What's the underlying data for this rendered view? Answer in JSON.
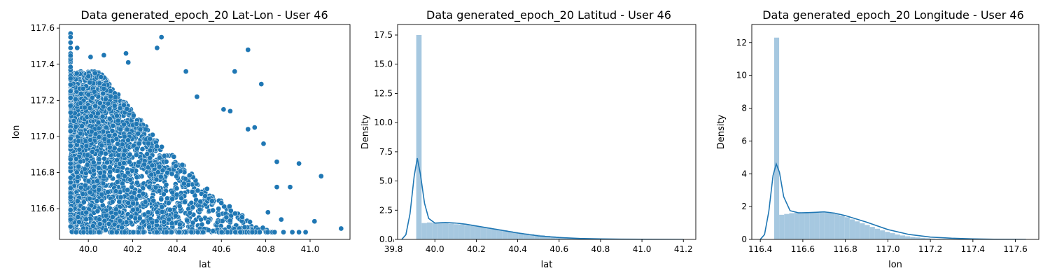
{
  "chart_data": [
    {
      "type": "scatter",
      "title": "Data generated_epoch_20 Lat-Lon - User 46",
      "xlabel": "lat",
      "ylabel": "lon",
      "xlim": [
        39.87,
        41.18
      ],
      "ylim": [
        116.43,
        117.62
      ],
      "xticks": [
        "40.0",
        "40.2",
        "40.4",
        "40.6",
        "40.8",
        "41.0"
      ],
      "yticks": [
        "116.6",
        "116.8",
        "117.0",
        "117.2",
        "117.4",
        "117.6"
      ],
      "color": "#1f77b4",
      "points": [
        [
          39.92,
          117.57
        ],
        [
          39.92,
          117.55
        ],
        [
          39.92,
          117.52
        ],
        [
          39.92,
          117.49
        ],
        [
          39.95,
          117.49
        ],
        [
          40.07,
          117.45
        ],
        [
          40.17,
          117.46
        ],
        [
          40.01,
          117.44
        ],
        [
          40.18,
          117.41
        ],
        [
          40.33,
          117.55
        ],
        [
          40.31,
          117.49
        ],
        [
          40.72,
          117.48
        ],
        [
          40.66,
          117.36
        ],
        [
          40.78,
          117.29
        ],
        [
          40.44,
          117.36
        ],
        [
          40.49,
          117.22
        ],
        [
          40.61,
          117.15
        ],
        [
          40.64,
          117.14
        ],
        [
          40.72,
          117.04
        ],
        [
          40.75,
          117.05
        ],
        [
          40.79,
          116.96
        ],
        [
          40.85,
          116.86
        ],
        [
          40.95,
          116.85
        ],
        [
          41.05,
          116.78
        ],
        [
          40.91,
          116.72
        ],
        [
          40.85,
          116.72
        ],
        [
          40.81,
          116.58
        ],
        [
          40.87,
          116.54
        ],
        [
          41.02,
          116.53
        ],
        [
          41.14,
          116.49
        ],
        [
          40.95,
          116.47
        ],
        [
          40.98,
          116.47
        ],
        [
          40.88,
          116.47
        ],
        [
          40.92,
          116.47
        ],
        [
          40.84,
          116.47
        ]
      ],
      "dense_region": {
        "lat_min": 39.92,
        "lat_max_at_top": 40.05,
        "lon_top": 117.36,
        "lat_max_at_bottom": 40.84,
        "lon_bottom": 116.47
      }
    },
    {
      "type": "histogram",
      "title": "Data generated_epoch_20 Latitud - User 46",
      "xlabel": "lat",
      "ylabel": "Density",
      "xlim": [
        39.82,
        41.26
      ],
      "ylim": [
        0,
        18.4
      ],
      "xticks": [
        "39.8",
        "40.0",
        "40.2",
        "40.4",
        "40.6",
        "40.8",
        "41.0",
        "41.2"
      ],
      "yticks": [
        "0.0",
        "2.5",
        "5.0",
        "7.5",
        "10.0",
        "12.5",
        "15.0",
        "17.5"
      ],
      "bar_color": "#a6c8e0",
      "line_color": "#1f77b4",
      "bins": {
        "start": 39.91,
        "width": 0.0259,
        "values": [
          17.5,
          1.4,
          1.45,
          1.4,
          1.4,
          1.38,
          1.35,
          1.3,
          1.28,
          1.22,
          1.17,
          1.12,
          1.06,
          1.0,
          0.92,
          0.85,
          0.78,
          0.7,
          0.62,
          0.55,
          0.5,
          0.45,
          0.4,
          0.35,
          0.3,
          0.26,
          0.22,
          0.18,
          0.15,
          0.12,
          0.1,
          0.08,
          0.06,
          0.05,
          0.04,
          0.03,
          0.025,
          0.02,
          0.015,
          0.012,
          0.01,
          0.008,
          0.006,
          0.005,
          0.004,
          0.003,
          0.003,
          0.002,
          0.002,
          0.001
        ]
      },
      "kde": {
        "x": [
          39.84,
          39.86,
          39.88,
          39.9,
          39.915,
          39.93,
          39.95,
          39.97,
          40.0,
          40.05,
          40.1,
          40.15,
          40.2,
          40.3,
          40.4,
          40.5,
          40.6,
          40.7,
          40.8,
          40.9,
          41.0,
          41.1,
          41.2
        ],
        "y": [
          0.0,
          0.4,
          2.2,
          5.4,
          6.95,
          5.6,
          3.1,
          1.8,
          1.4,
          1.45,
          1.4,
          1.3,
          1.15,
          0.85,
          0.55,
          0.3,
          0.16,
          0.08,
          0.04,
          0.02,
          0.01,
          0.005,
          0.0
        ]
      }
    },
    {
      "type": "histogram",
      "title": "Data generated_epoch_20 Longitude - User 46",
      "xlabel": "lon",
      "ylabel": "Density",
      "xlim": [
        116.36,
        117.71
      ],
      "ylim": [
        0,
        13.1
      ],
      "xticks": [
        "116.4",
        "116.6",
        "116.8",
        "117.0",
        "117.2",
        "117.4",
        "117.6"
      ],
      "yticks": [
        "0",
        "2",
        "4",
        "6",
        "8",
        "10",
        "12"
      ],
      "bar_color": "#a6c8e0",
      "line_color": "#1f77b4",
      "bins": {
        "start": 116.465,
        "width": 0.0237,
        "values": [
          12.3,
          1.5,
          1.55,
          1.6,
          1.62,
          1.64,
          1.65,
          1.66,
          1.68,
          1.7,
          1.68,
          1.62,
          1.55,
          1.45,
          1.35,
          1.22,
          1.1,
          0.98,
          0.88,
          0.76,
          0.65,
          0.55,
          0.46,
          0.38,
          0.3,
          0.24,
          0.19,
          0.15,
          0.12,
          0.09,
          0.07,
          0.05,
          0.04,
          0.03,
          0.025,
          0.02,
          0.015,
          0.01,
          0.008,
          0.006,
          0.005,
          0.004,
          0.003,
          0.002,
          0.002,
          0.001,
          0.001,
          0.001,
          0.001,
          0.0
        ]
      },
      "kde": {
        "x": [
          116.4,
          116.42,
          116.44,
          116.46,
          116.475,
          116.49,
          116.51,
          116.54,
          116.58,
          116.62,
          116.66,
          116.7,
          116.75,
          116.8,
          116.9,
          117.0,
          117.1,
          117.2,
          117.3,
          117.4,
          117.5,
          117.6,
          117.65
        ],
        "y": [
          0.0,
          0.3,
          1.7,
          3.9,
          4.6,
          4.1,
          2.6,
          1.75,
          1.62,
          1.63,
          1.65,
          1.68,
          1.6,
          1.45,
          1.05,
          0.6,
          0.3,
          0.14,
          0.07,
          0.03,
          0.01,
          0.004,
          0.0
        ]
      }
    }
  ]
}
